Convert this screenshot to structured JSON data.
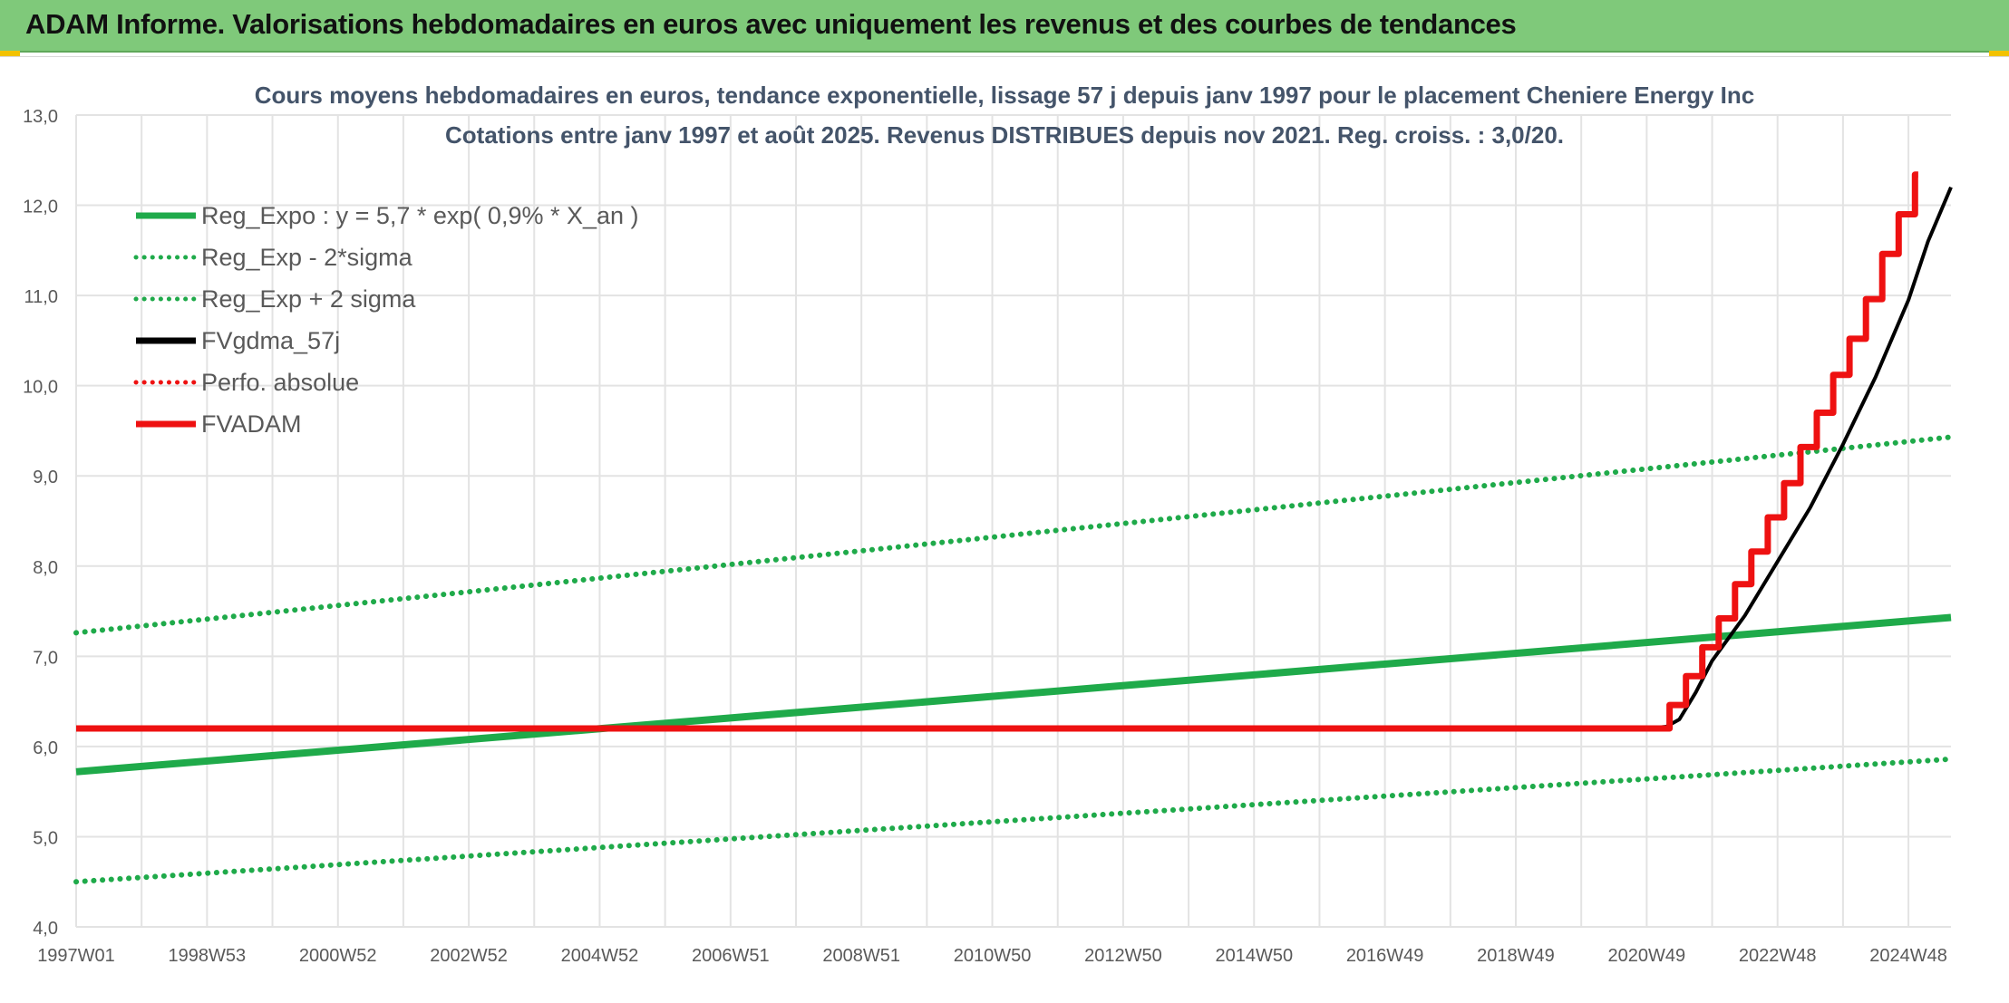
{
  "banner": {
    "title": "ADAM Informe. Valorisations hebdomadaires en euros avec uniquement les revenus et des courbes de tendances"
  },
  "colors": {
    "banner_bg": "#7fc97a",
    "green": "#1faa4a",
    "black": "#000000",
    "red": "#ee1111",
    "grid": "#e3e3e3"
  },
  "chart_data": {
    "type": "line",
    "title": "Cours moyens hebdomadaires en euros, tendance exponentielle, lissage 57 j depuis janv 1997 pour le placement Cheniere Energy Inc",
    "subtitle": "Cotations entre janv 1997 et août 2025. Revenus DISTRIBUES depuis nov 2021. Reg. croiss. : 3,0/20.",
    "xlabel": "",
    "ylabel": "",
    "x_range_years": [
      1997.0,
      2025.65
    ],
    "ylim": [
      4.0,
      13.0
    ],
    "y_ticks": [
      "4,0",
      "5,0",
      "6,0",
      "7,0",
      "8,0",
      "9,0",
      "10,0",
      "11,0",
      "12,0",
      "13,0"
    ],
    "x_ticks": [
      {
        "label": "1997W01",
        "year": 1997.0
      },
      {
        "label": "1998W53",
        "year": 1999.0
      },
      {
        "label": "2000W52",
        "year": 2001.0
      },
      {
        "label": "2002W52",
        "year": 2003.0
      },
      {
        "label": "2004W52",
        "year": 2005.0
      },
      {
        "label": "2006W51",
        "year": 2007.0
      },
      {
        "label": "2008W51",
        "year": 2009.0
      },
      {
        "label": "2010W50",
        "year": 2011.0
      },
      {
        "label": "2012W50",
        "year": 2013.0
      },
      {
        "label": "2014W50",
        "year": 2015.0
      },
      {
        "label": "2016W49",
        "year": 2017.0
      },
      {
        "label": "2018W49",
        "year": 2019.0
      },
      {
        "label": "2020W49",
        "year": 2021.0
      },
      {
        "label": "2022W48",
        "year": 2023.0
      },
      {
        "label": "2024W48",
        "year": 2025.0
      }
    ],
    "grid": true,
    "legend_position": "top-left",
    "series": [
      {
        "name": "Reg_Expo : y = 5,7 * exp( 0,9% *  X_an )",
        "color": "#1faa4a",
        "style": "solid",
        "width": 8,
        "points": [
          [
            1997.0,
            5.72
          ],
          [
            2025.65,
            7.43
          ]
        ]
      },
      {
        "name": "Reg_Exp - 2*sigma",
        "color": "#1faa4a",
        "style": "dotted",
        "width": 6,
        "points": [
          [
            1997.0,
            4.5
          ],
          [
            2025.65,
            5.86
          ]
        ]
      },
      {
        "name": "Reg_Exp + 2 sigma",
        "color": "#1faa4a",
        "style": "dotted",
        "width": 6,
        "points": [
          [
            1997.0,
            7.26
          ],
          [
            2025.65,
            9.43
          ]
        ]
      },
      {
        "name": "FVgdma_57j",
        "color": "#000000",
        "style": "solid",
        "width": 4,
        "points": [
          [
            1997.0,
            6.2
          ],
          [
            2020.6,
            6.2
          ],
          [
            2021.0,
            6.2
          ],
          [
            2021.3,
            6.22
          ],
          [
            2021.5,
            6.3
          ],
          [
            2021.75,
            6.6
          ],
          [
            2022.0,
            6.95
          ],
          [
            2022.5,
            7.45
          ],
          [
            2023.0,
            8.05
          ],
          [
            2023.5,
            8.65
          ],
          [
            2024.0,
            9.35
          ],
          [
            2024.5,
            10.1
          ],
          [
            2025.0,
            10.95
          ],
          [
            2025.3,
            11.6
          ],
          [
            2025.65,
            12.2
          ]
        ]
      },
      {
        "name": "Perfo. absolue",
        "color": "#ee1111",
        "style": "dotted",
        "width": 4,
        "points": []
      },
      {
        "name": "FVADAM",
        "color": "#ee1111",
        "style": "solid",
        "width": 7,
        "points": [
          [
            1997.0,
            6.2
          ],
          [
            2021.35,
            6.2
          ],
          [
            2021.35,
            6.46
          ],
          [
            2021.6,
            6.46
          ],
          [
            2021.6,
            6.78
          ],
          [
            2021.85,
            6.78
          ],
          [
            2021.85,
            7.1
          ],
          [
            2022.1,
            7.1
          ],
          [
            2022.1,
            7.42
          ],
          [
            2022.35,
            7.42
          ],
          [
            2022.35,
            7.8
          ],
          [
            2022.6,
            7.8
          ],
          [
            2022.6,
            8.16
          ],
          [
            2022.85,
            8.16
          ],
          [
            2022.85,
            8.54
          ],
          [
            2023.1,
            8.54
          ],
          [
            2023.1,
            8.92
          ],
          [
            2023.35,
            8.92
          ],
          [
            2023.35,
            9.32
          ],
          [
            2023.6,
            9.32
          ],
          [
            2023.6,
            9.7
          ],
          [
            2023.85,
            9.7
          ],
          [
            2023.85,
            10.12
          ],
          [
            2024.1,
            10.12
          ],
          [
            2024.1,
            10.52
          ],
          [
            2024.35,
            10.52
          ],
          [
            2024.35,
            10.96
          ],
          [
            2024.6,
            10.96
          ],
          [
            2024.6,
            11.46
          ],
          [
            2024.85,
            11.46
          ],
          [
            2024.85,
            11.9
          ],
          [
            2025.1,
            11.9
          ],
          [
            2025.1,
            12.34
          ],
          [
            2025.15,
            12.34
          ]
        ]
      }
    ]
  }
}
